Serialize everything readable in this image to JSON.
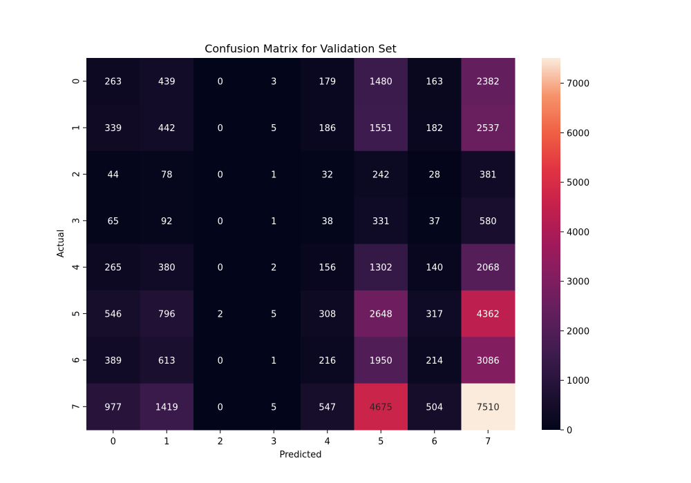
{
  "chart_data": {
    "type": "heatmap",
    "title": "Confusion Matrix for Validation Set",
    "xlabel": "Predicted",
    "ylabel": "Actual",
    "x_categories": [
      "0",
      "1",
      "2",
      "3",
      "4",
      "5",
      "6",
      "7"
    ],
    "y_categories": [
      "0",
      "1",
      "2",
      "3",
      "4",
      "5",
      "6",
      "7"
    ],
    "values": [
      [
        263,
        439,
        0,
        3,
        179,
        1480,
        163,
        2382
      ],
      [
        339,
        442,
        0,
        5,
        186,
        1551,
        182,
        2537
      ],
      [
        44,
        78,
        0,
        1,
        32,
        242,
        28,
        381
      ],
      [
        65,
        92,
        0,
        1,
        38,
        331,
        37,
        580
      ],
      [
        265,
        380,
        0,
        2,
        156,
        1302,
        140,
        2068
      ],
      [
        546,
        796,
        2,
        5,
        308,
        2648,
        317,
        4362
      ],
      [
        389,
        613,
        0,
        1,
        216,
        1950,
        214,
        3086
      ],
      [
        977,
        1419,
        0,
        5,
        547,
        4675,
        504,
        7510
      ]
    ],
    "colorbar": {
      "range": [
        0,
        7510
      ],
      "ticks": [
        0,
        1000,
        2000,
        3000,
        4000,
        5000,
        6000,
        7000
      ],
      "colormap": "rocket"
    },
    "grid": false
  }
}
